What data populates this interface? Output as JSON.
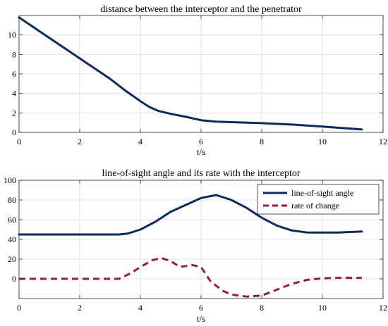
{
  "chart_data": [
    {
      "type": "line",
      "title": "distance between the interceptor and the penetrator",
      "xlabel": "t/s",
      "ylabel": "",
      "xlim": [
        0,
        12
      ],
      "ylim": [
        0,
        12
      ],
      "xticks": [
        "0",
        "2",
        "4",
        "6",
        "8",
        "10",
        "12"
      ],
      "yticks": [
        "0",
        "2",
        "4",
        "6",
        "8",
        "10"
      ],
      "grid": true,
      "series": [
        {
          "color": "#0b2a5e",
          "style": "solid",
          "x": [
            0,
            1,
            2,
            3,
            3.5,
            4,
            4.3,
            4.6,
            5,
            5.5,
            6,
            6.5,
            7,
            8,
            9,
            10,
            11.3
          ],
          "y": [
            11.8,
            9.7,
            7.6,
            5.5,
            4.3,
            3.2,
            2.6,
            2.2,
            1.9,
            1.6,
            1.25,
            1.1,
            1.05,
            0.95,
            0.8,
            0.6,
            0.3
          ]
        }
      ]
    },
    {
      "type": "line",
      "title": "line-of-sight angle and its rate with the interceptor",
      "xlabel": "t/s",
      "ylabel": "",
      "xlim": [
        0,
        12
      ],
      "ylim": [
        -20,
        100
      ],
      "xticks": [
        "0",
        "2",
        "4",
        "6",
        "8",
        "10",
        "12"
      ],
      "yticks": [
        "0",
        "20",
        "40",
        "60",
        "80",
        "100"
      ],
      "grid": true,
      "legend_position": "top-right",
      "series": [
        {
          "name": "line-of-sight angle",
          "color": "#0b2a5e",
          "style": "solid",
          "x": [
            0,
            1,
            2,
            3,
            3.3,
            3.6,
            4,
            4.5,
            5,
            5.5,
            6,
            6.5,
            7,
            7.5,
            8,
            8.5,
            9,
            9.5,
            10,
            10.5,
            11.3
          ],
          "y": [
            45,
            45,
            45,
            45,
            45,
            46,
            50,
            58,
            68,
            75,
            82,
            85,
            80,
            72,
            62,
            54,
            49,
            47,
            47,
            47,
            48
          ]
        },
        {
          "name": "rate of change",
          "color": "#9b1b3e",
          "style": "dashed",
          "x": [
            0,
            1,
            2,
            3,
            3.3,
            3.7,
            4,
            4.4,
            4.7,
            5,
            5.3,
            5.7,
            6,
            6.3,
            6.7,
            7,
            7.5,
            8,
            8.5,
            9,
            9.5,
            10,
            10.5,
            11.3
          ],
          "y": [
            0,
            0,
            0,
            0,
            0,
            6,
            12,
            19,
            21,
            18,
            12,
            14,
            12,
            -2,
            -12,
            -16,
            -18,
            -17,
            -11,
            -5,
            -1,
            0.5,
            1,
            1
          ]
        }
      ]
    }
  ]
}
